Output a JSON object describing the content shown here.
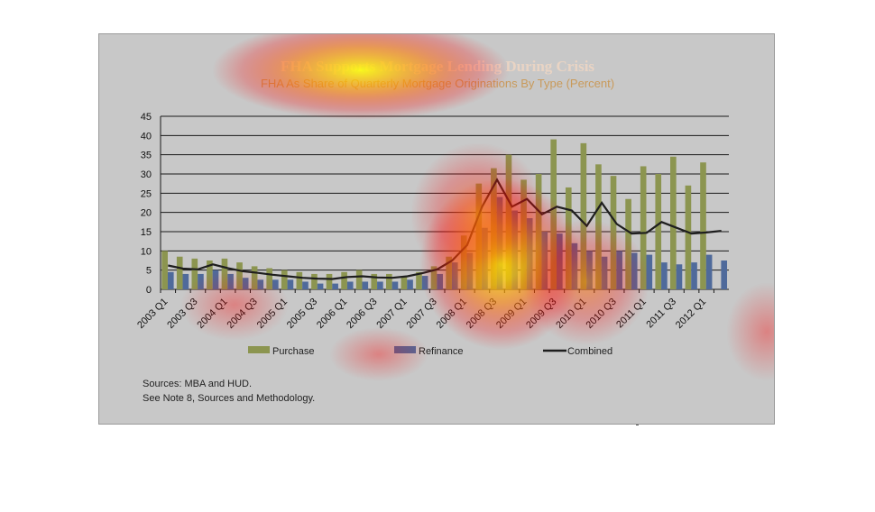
{
  "chart_data": {
    "type": "bar",
    "title": "FHA Supports Mortgage Lending During Crisis",
    "subtitle": "FHA As Share of Quarterly Mortgage Originations By Type (Percent)",
    "xlabel": "",
    "ylabel": "",
    "ylim": [
      0,
      45
    ],
    "yticks": [
      0,
      5,
      10,
      15,
      20,
      25,
      30,
      35,
      40,
      45
    ],
    "grid": true,
    "legend_position": "bottom",
    "categories": [
      "2003 Q1",
      "2003 Q2",
      "2003 Q3",
      "2003 Q4",
      "2004 Q1",
      "2004 Q2",
      "2004 Q3",
      "2004 Q4",
      "2005 Q1",
      "2005 Q2",
      "2005 Q3",
      "2005 Q4",
      "2006 Q1",
      "2006 Q2",
      "2006 Q3",
      "2006 Q4",
      "2007 Q1",
      "2007 Q2",
      "2007 Q3",
      "2007 Q4",
      "2008 Q1",
      "2008 Q2",
      "2008 Q3",
      "2008 Q4",
      "2009 Q1",
      "2009 Q2",
      "2009 Q3",
      "2009 Q4",
      "2010 Q1",
      "2010 Q2",
      "2010 Q3",
      "2010 Q4",
      "2011 Q1",
      "2011 Q2",
      "2011 Q3",
      "2011 Q4",
      "2012 Q1",
      "2012 Q2"
    ],
    "tick_labels": [
      "2003 Q1",
      "2003 Q3",
      "2004 Q1",
      "2004 Q3",
      "2005 Q1",
      "2005 Q3",
      "2006 Q1",
      "2006 Q3",
      "2007 Q1",
      "2007 Q3",
      "2008 Q1",
      "2008 Q3",
      "2009 Q1",
      "2009 Q3",
      "2010 Q1",
      "2010 Q3",
      "2011 Q1",
      "2011 Q3",
      "2012 Q1"
    ],
    "series": [
      {
        "name": "Purchase",
        "kind": "bar",
        "color": "#8c9550",
        "values": [
          10,
          8.5,
          8,
          7.5,
          8,
          7,
          6,
          5.5,
          5,
          4.5,
          4,
          4,
          4.5,
          5,
          4,
          4,
          3.5,
          4.5,
          6,
          8.5,
          14,
          27.5,
          31.5,
          35,
          28.5,
          30,
          39,
          26.5,
          38,
          32.5,
          29.5,
          23.5,
          32,
          30,
          34.5,
          27,
          33,
          0
        ]
      },
      {
        "name": "Refinance",
        "kind": "bar",
        "color": "#4f6a9b",
        "values": [
          4.5,
          4,
          4,
          5,
          4,
          3,
          2.5,
          2.5,
          2.5,
          2,
          1.5,
          1.5,
          2,
          2,
          2,
          2,
          2.5,
          3.5,
          4,
          7,
          9.5,
          16,
          24,
          20.5,
          18.5,
          15,
          14.5,
          12,
          10,
          8.5,
          10,
          9.5,
          9,
          7,
          6.5,
          7,
          9,
          7.5
        ]
      },
      {
        "name": "Combined",
        "kind": "line",
        "color": "#1e1e1e",
        "values": [
          6.2,
          5.4,
          5.2,
          6.5,
          5.5,
          4.7,
          4.3,
          3.8,
          3.4,
          3,
          2.8,
          2.7,
          3.2,
          3.4,
          3.1,
          3,
          3.4,
          4.2,
          5.2,
          7.5,
          11.5,
          21.5,
          28.5,
          21.5,
          23.5,
          19.5,
          21.5,
          20.5,
          16.5,
          22.5,
          17,
          14.5,
          14.7,
          17.5,
          16,
          14.5,
          14.8,
          15.2
        ]
      }
    ]
  },
  "sources": {
    "line1": "Sources:  MBA and HUD.",
    "line2": "See Note 8, Sources and Methodology."
  },
  "heatmap_colors": {
    "hot": "#ffff00",
    "warm": "#ff8000",
    "edge": "#ff0000"
  }
}
